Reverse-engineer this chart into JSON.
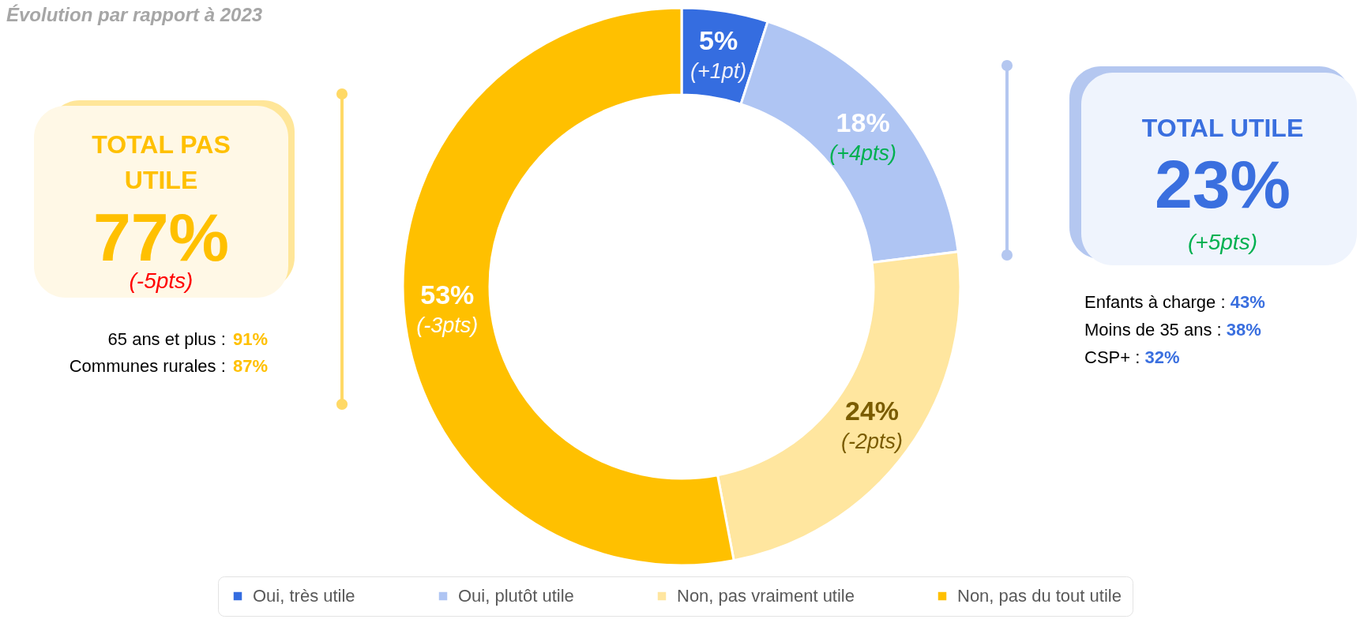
{
  "chart_data": {
    "type": "donut",
    "title": "Évolution par rapport à 2023",
    "categories": [
      "Oui, très utile",
      "Oui, plutôt utile",
      "Non, pas vraiment utile",
      "Non, pas du tout utile"
    ],
    "values": [
      5,
      18,
      24,
      53
    ],
    "colors": [
      "#356de0",
      "#afc5f3",
      "#ffe69f",
      "#ffc000"
    ],
    "value_labels": [
      "5%",
      "18%",
      "24%",
      "53%"
    ],
    "legend": "bottom",
    "annotations": [
      {
        "text": "(+1pt)",
        "x": "Oui, très utile"
      },
      {
        "text": "(+4pts)",
        "x": "Oui, plutôt utile"
      },
      {
        "text": "(-2pts)",
        "x": "Non, pas vraiment utile"
      },
      {
        "text": "(-3pts)",
        "x": "Non, pas du tout utile"
      },
      "TOTAL PAS UTILE",
      "77%",
      "(-5pts)",
      "65 ans et plus : 91%",
      "Communes rurales : 87%",
      "TOTAL UTILE",
      "23%",
      "(+5pts)",
      "Enfants à charge : 43%",
      "Moins de 35 ans : 38%",
      "CSP+ : 32%"
    ]
  }
}
